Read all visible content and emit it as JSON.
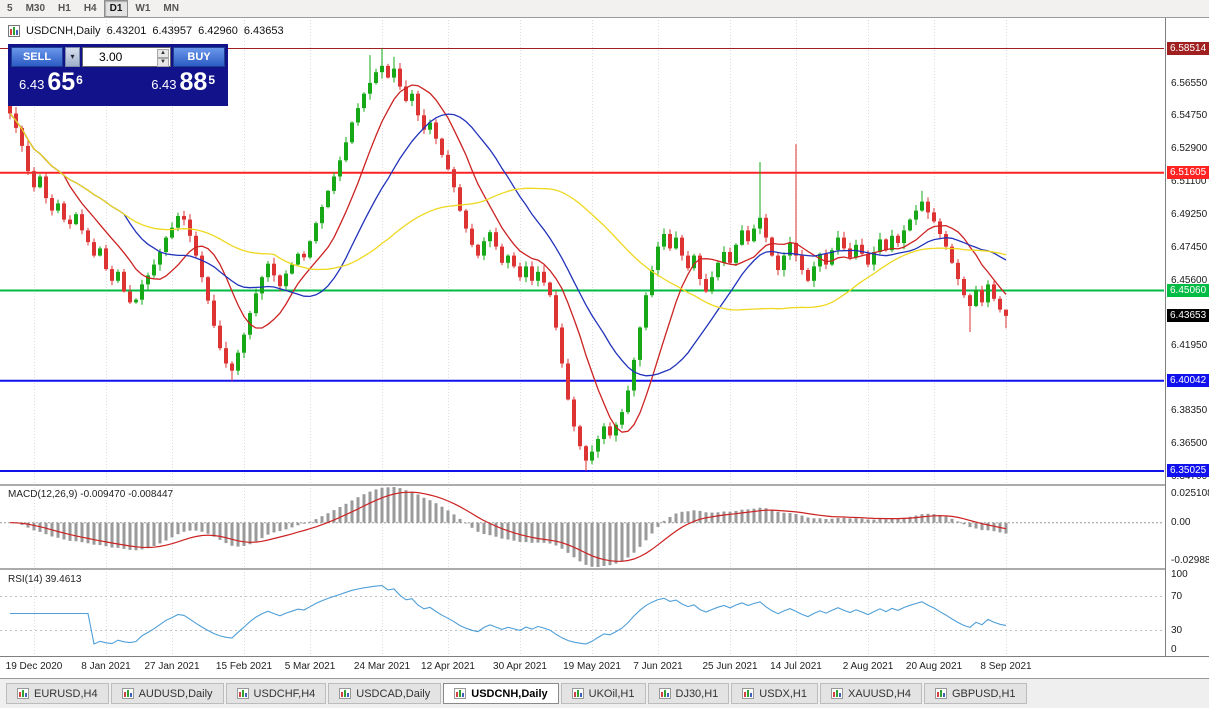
{
  "toolbar": {
    "periods": [
      {
        "label": "5"
      },
      {
        "label": "M30"
      },
      {
        "label": "H1"
      },
      {
        "label": "H4"
      },
      {
        "label": "D1",
        "active": true
      },
      {
        "label": "W1"
      },
      {
        "label": "MN"
      }
    ]
  },
  "chart_header": {
    "symbol": "USDCNH,Daily",
    "open": "6.43201",
    "high": "6.43957",
    "low": "6.42960",
    "close": "6.43653"
  },
  "trade_panel": {
    "sell_label": "SELL",
    "buy_label": "BUY",
    "volume": "3.00",
    "sell_price": {
      "big": "6.43",
      "pips": "65",
      "pt": "6"
    },
    "buy_price": {
      "big": "6.43",
      "pips": "88",
      "pt": "5"
    }
  },
  "tabs": [
    {
      "label": "EURUSD,H4"
    },
    {
      "label": "AUDUSD,Daily"
    },
    {
      "label": "USDCHF,H4"
    },
    {
      "label": "USDCAD,Daily"
    },
    {
      "label": "USDCNH,Daily",
      "active": true
    },
    {
      "label": "UKOil,H1"
    },
    {
      "label": "DJ30,H1"
    },
    {
      "label": "USDX,H1"
    },
    {
      "label": "XAUUSD,H4"
    },
    {
      "label": "GBPUSD,H1"
    }
  ],
  "chart_data": {
    "type": "candlestick",
    "symbol": "USDCNH,Daily",
    "x_labels": [
      "19 Dec 2020",
      "8 Jan 2021",
      "27 Jan 2021",
      "15 Feb 2021",
      "5 Mar 2021",
      "24 Mar 2021",
      "12 Apr 2021",
      "30 Apr 2021",
      "19 May 2021",
      "7 Jun 2021",
      "25 Jun 2021",
      "14 Jul 2021",
      "2 Aug 2021",
      "20 Aug 2021",
      "8 Sep 2021"
    ],
    "x_label_idx": [
      4,
      16,
      27,
      39,
      50,
      62,
      73,
      85,
      97,
      108,
      120,
      131,
      143,
      154,
      166
    ],
    "ylim": [
      6.343,
      6.601
    ],
    "closes": [
      6.549,
      6.541,
      6.531,
      6.517,
      6.508,
      6.514,
      6.502,
      6.495,
      6.499,
      6.49,
      6.4875,
      6.493,
      6.484,
      6.4775,
      6.47,
      6.474,
      6.4625,
      6.456,
      6.461,
      6.45,
      6.444,
      6.4455,
      6.454,
      6.459,
      6.465,
      6.472,
      6.48,
      6.4855,
      6.492,
      6.49,
      6.481,
      6.47,
      6.458,
      6.445,
      6.431,
      6.4185,
      6.41,
      6.406,
      6.416,
      6.426,
      6.438,
      6.449,
      6.458,
      6.4655,
      6.459,
      6.453,
      6.46,
      6.465,
      6.471,
      6.469,
      6.478,
      6.488,
      6.497,
      6.506,
      6.514,
      6.523,
      6.533,
      6.544,
      6.552,
      6.56,
      6.566,
      6.572,
      6.5755,
      6.569,
      6.574,
      6.564,
      6.556,
      6.56,
      6.548,
      6.54,
      6.544,
      6.535,
      6.526,
      6.518,
      6.508,
      6.495,
      6.485,
      6.476,
      6.47,
      6.478,
      6.483,
      6.475,
      6.466,
      6.47,
      6.464,
      6.458,
      6.464,
      6.456,
      6.461,
      6.455,
      6.448,
      6.43,
      6.41,
      6.39,
      6.375,
      6.364,
      6.356,
      6.361,
      6.368,
      6.375,
      6.37,
      6.376,
      6.383,
      6.395,
      6.412,
      6.43,
      6.448,
      6.462,
      6.475,
      6.482,
      6.474,
      6.48,
      6.47,
      6.463,
      6.47,
      6.457,
      6.45,
      6.458,
      6.466,
      6.472,
      6.466,
      6.476,
      6.484,
      6.478,
      6.485,
      6.491,
      6.48,
      6.47,
      6.462,
      6.47,
      6.477,
      6.47,
      6.462,
      6.456,
      6.464,
      6.471,
      6.465,
      6.473,
      6.48,
      6.474,
      6.469,
      6.476,
      6.471,
      6.465,
      6.472,
      6.479,
      6.473,
      6.481,
      6.477,
      6.484,
      6.49,
      6.495,
      6.5,
      6.494,
      6.489,
      6.482,
      6.475,
      6.466,
      6.457,
      6.448,
      6.442,
      6.451,
      6.444,
      6.454,
      6.446,
      6.44,
      6.4365
    ],
    "wick_overrides": {
      "0": {
        "high": 6.5565
      },
      "37": {
        "low": 6.4004
      },
      "60": {
        "high": 6.5815
      },
      "62": {
        "high": 6.5851
      },
      "64": {
        "high": 6.5805
      },
      "96": {
        "low": 6.3503
      },
      "125": {
        "high": 6.522
      },
      "131": {
        "high": 6.532
      },
      "152": {
        "high": 6.506
      },
      "160": {
        "low": 6.4275
      },
      "166": {
        "high": 6.43957,
        "low": 6.4296
      }
    },
    "candle_colors": {
      "up": "#16a816",
      "down": "#dd3333"
    },
    "ma": [
      {
        "name": "ma-fast-red",
        "period": 10,
        "color": "#cc2222"
      },
      {
        "name": "ma-mid-blue",
        "period": 20,
        "color": "#2233bb"
      },
      {
        "name": "ma-slow-yellow",
        "period": 45,
        "color": "#eed820"
      }
    ],
    "levels": [
      {
        "price": 6.58514,
        "label": "6.58514",
        "color": "#a02020",
        "width": 1
      },
      {
        "price": 6.51605,
        "label": "6.51605",
        "color": "#ff2222",
        "width": 2
      },
      {
        "price": 6.4506,
        "label": "6.45060",
        "color": "#00bb44",
        "width": 2
      },
      {
        "price": 6.40042,
        "label": "6.40042",
        "color": "#1111ee",
        "width": 2
      },
      {
        "price": 6.35025,
        "label": "6.35025",
        "color": "#1111ee",
        "width": 2
      }
    ],
    "current_price": {
      "value": 6.43653,
      "label": "6.43653",
      "color": "#000000"
    },
    "y_ticks": [
      "6.56550",
      "6.54750",
      "6.52900",
      "6.51100",
      "6.49250",
      "6.47450",
      "6.45600",
      "6.41950",
      "6.38350",
      "6.36500",
      "6.34700"
    ],
    "macd": {
      "label": "MACD(12,26,9) -0.009470 -0.008447",
      "params": [
        12,
        26,
        9
      ],
      "ylim": [
        -0.029885,
        0.025108
      ],
      "y_ticks": [
        "0.025108",
        "0.00",
        "-0.029885"
      ],
      "hist_color": "#9a9a9a",
      "signal_color": "#cc2222"
    },
    "rsi": {
      "label": "RSI(14) 39.4613",
      "period": 14,
      "ylim": [
        0,
        100
      ],
      "levels": [
        70,
        30
      ],
      "y_ticks": [
        "100",
        "70",
        "30",
        "0"
      ],
      "line_color": "#4f9fd8"
    }
  }
}
